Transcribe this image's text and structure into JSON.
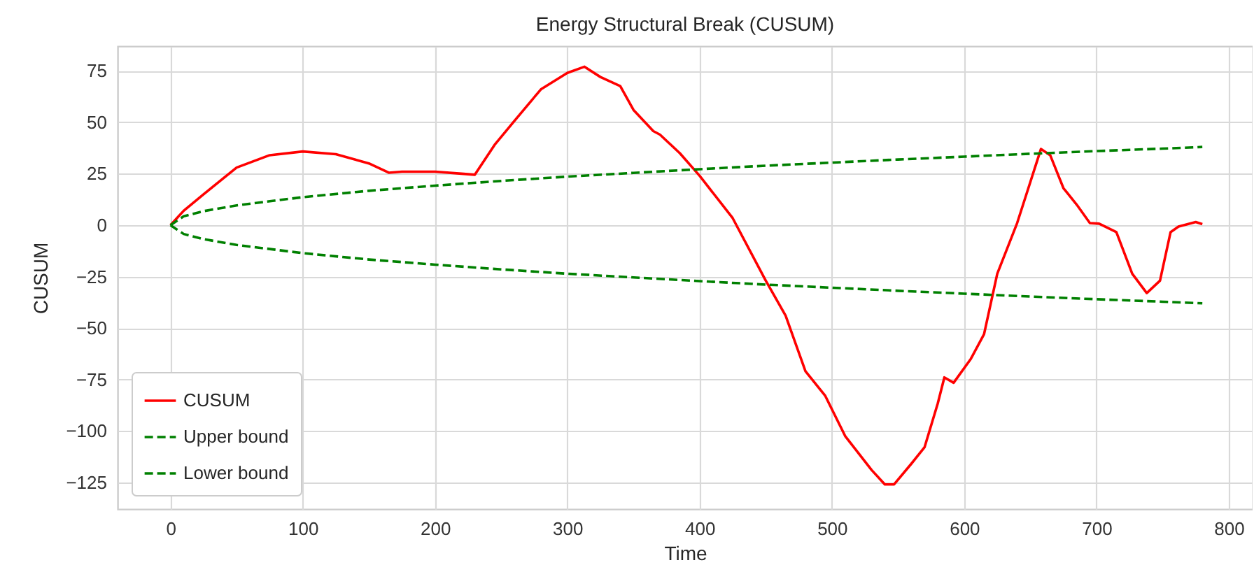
{
  "chart_data": {
    "type": "line",
    "title": "Energy Structural Break (CUSUM)",
    "xlabel": "Time",
    "ylabel": "CUSUM",
    "xlim": [
      -40,
      818
    ],
    "ylim": [
      -138,
      87
    ],
    "xticks": [
      0,
      100,
      200,
      300,
      400,
      500,
      600,
      700,
      800
    ],
    "yticks": [
      -125,
      -100,
      -75,
      -50,
      -25,
      0,
      25,
      50,
      75
    ],
    "grid": true,
    "legend": "bottom left",
    "series": [
      {
        "name": "CUSUM",
        "color": "#ff0000",
        "line_style": "solid",
        "x": [
          0,
          10,
          25,
          50,
          75,
          100,
          125,
          150,
          165,
          175,
          200,
          220,
          230,
          245,
          260,
          280,
          300,
          313,
          325,
          340,
          350,
          365,
          370,
          385,
          400,
          425,
          450,
          465,
          480,
          495,
          510,
          530,
          540,
          547,
          560,
          570,
          580,
          585,
          592,
          605,
          615,
          625,
          640,
          650,
          658,
          665,
          675,
          685,
          695,
          702,
          715,
          727,
          738,
          748,
          756,
          762,
          775,
          780
        ],
        "values": [
          0,
          7,
          15,
          28,
          34,
          35.8,
          34.5,
          30,
          25.5,
          26,
          26,
          25,
          24.5,
          39,
          50.7,
          66,
          74,
          77,
          72,
          67.6,
          56,
          45.7,
          44,
          35,
          24,
          3.4,
          -27,
          -44,
          -71,
          -83,
          -102.5,
          -119,
          -126,
          -126,
          -116,
          -108,
          -86.7,
          -74,
          -76.6,
          -65,
          -53,
          -23.6,
          1,
          21,
          37,
          34,
          18,
          10,
          1,
          0.7,
          -3.4,
          -23.6,
          -33,
          -27,
          -3.4,
          -0.7,
          1.5,
          0.5
        ]
      },
      {
        "name": "Upper bound",
        "color": "#008000",
        "line_style": "dashed",
        "x": [
          0,
          10,
          25,
          50,
          100,
          150,
          200,
          250,
          300,
          350,
          400,
          450,
          500,
          550,
          600,
          650,
          700,
          750,
          780
        ],
        "values": [
          0,
          4.3,
          6.8,
          9.6,
          13.6,
          16.7,
          19.2,
          21.5,
          23.6,
          25.4,
          27.2,
          28.9,
          30.4,
          31.9,
          33.3,
          34.7,
          36,
          37.2,
          38
        ]
      },
      {
        "name": "Lower bound",
        "color": "#008000",
        "line_style": "dashed",
        "x": [
          0,
          10,
          25,
          50,
          100,
          150,
          200,
          250,
          300,
          350,
          400,
          450,
          500,
          550,
          600,
          650,
          700,
          750,
          780
        ],
        "values": [
          0,
          -4.3,
          -6.8,
          -9.6,
          -13.6,
          -16.7,
          -19.2,
          -21.5,
          -23.6,
          -25.4,
          -27.2,
          -28.9,
          -30.4,
          -31.9,
          -33.3,
          -34.7,
          -36,
          -37.2,
          -38
        ]
      }
    ]
  }
}
